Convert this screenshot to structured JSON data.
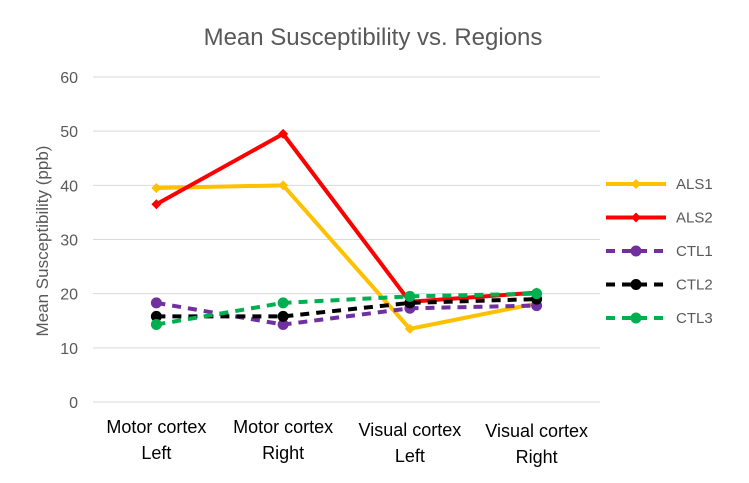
{
  "chart_data": {
    "type": "line",
    "title": "Mean Susceptibility vs. Regions",
    "xlabel": "",
    "ylabel": "Mean Susceptibility (ppb)",
    "ylim": [
      0,
      60
    ],
    "yticks": [
      "0",
      "10",
      "20",
      "30",
      "40",
      "50",
      "60"
    ],
    "grid": true,
    "legend_position": "right",
    "categories": [
      [
        "Motor cortex",
        "Left"
      ],
      [
        "Motor cortex",
        "Right"
      ],
      [
        "Visual cortex",
        "Left"
      ],
      [
        "Visual cortex",
        "Right"
      ]
    ],
    "series": [
      {
        "name": "ALS1",
        "color": "#FFC000",
        "dashed": false,
        "marker": "diamond",
        "values": [
          39.5,
          40.0,
          13.5,
          18.2
        ]
      },
      {
        "name": "ALS2",
        "color": "#FF0000",
        "dashed": false,
        "marker": "diamond",
        "values": [
          36.5,
          49.5,
          18.5,
          20.2
        ]
      },
      {
        "name": "CTL1",
        "color": "#7030A0",
        "dashed": true,
        "marker": "circle",
        "values": [
          18.3,
          14.3,
          17.3,
          17.8
        ]
      },
      {
        "name": "CTL2",
        "color": "#000000",
        "dashed": true,
        "marker": "circle",
        "values": [
          15.8,
          15.8,
          18.3,
          19.0
        ]
      },
      {
        "name": "CTL3",
        "color": "#00B050",
        "dashed": true,
        "marker": "circle",
        "values": [
          14.3,
          18.3,
          19.5,
          20.0
        ]
      }
    ]
  }
}
